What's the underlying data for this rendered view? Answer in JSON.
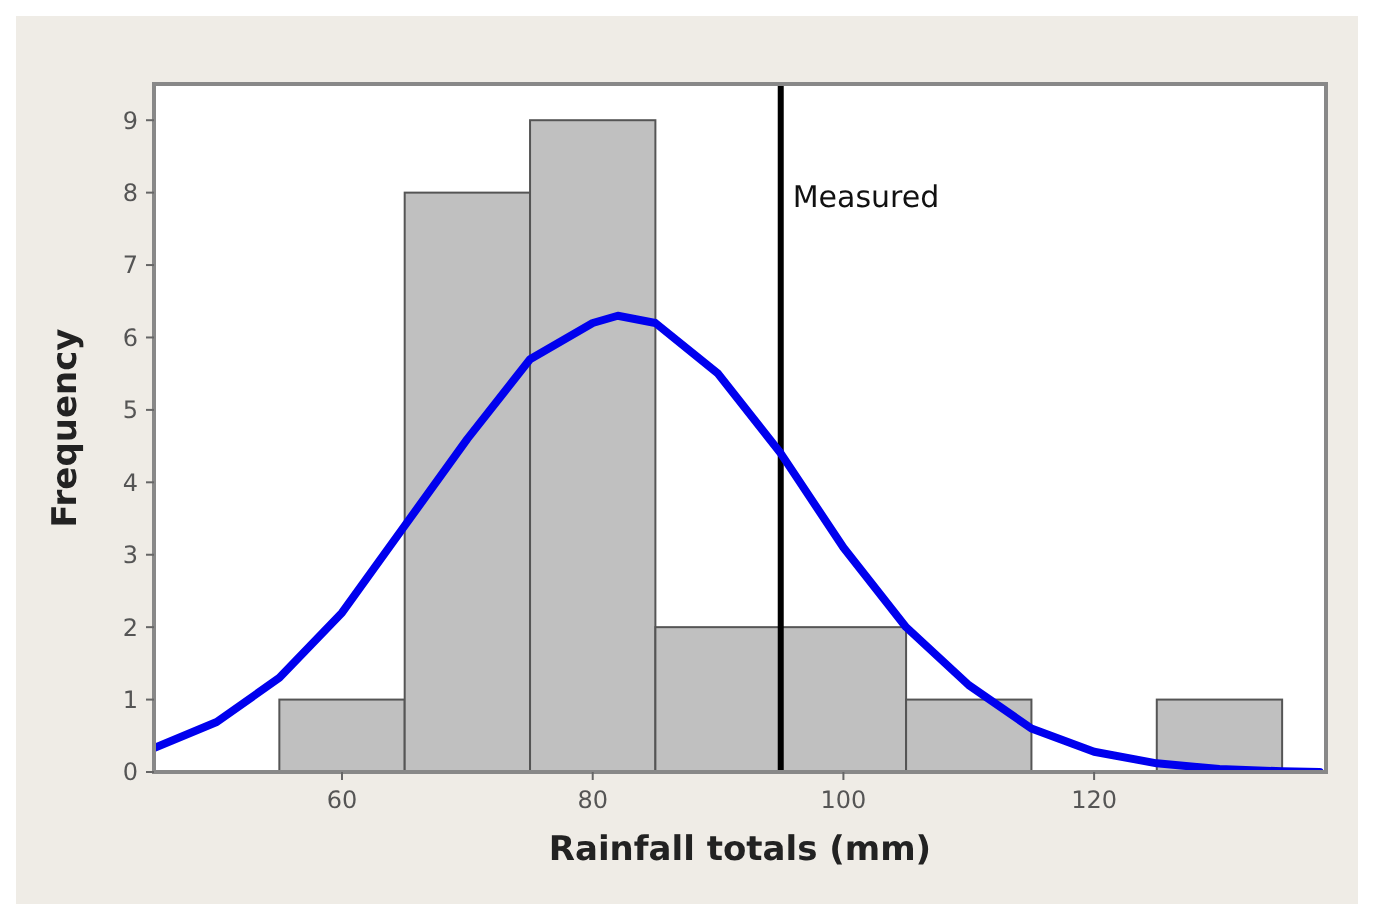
{
  "chart_data": {
    "type": "histogram",
    "xlabel": "Rainfall totals (mm)",
    "ylabel": "Frequency",
    "bins": [
      55,
      65,
      75,
      85,
      95,
      105,
      115,
      125,
      135
    ],
    "values": [
      1,
      8,
      9,
      2,
      2,
      1,
      0,
      1
    ],
    "color": "#c0c0c0",
    "series": [
      {
        "type": "line",
        "color": "#0000ee",
        "x": [
          45,
          50,
          55,
          60,
          65,
          70,
          75,
          80,
          82,
          85,
          90,
          95,
          100,
          105,
          110,
          115,
          120,
          125,
          130,
          135,
          138
        ],
        "values": [
          0.33,
          0.69,
          1.3,
          2.2,
          3.4,
          4.6,
          5.7,
          6.2,
          6.3,
          6.2,
          5.5,
          4.4,
          3.1,
          2.0,
          1.2,
          0.6,
          0.28,
          0.12,
          0.04,
          0.01,
          0
        ]
      }
    ],
    "xlim": [
      45,
      138.5
    ],
    "xticks": [
      60,
      80,
      100,
      120
    ],
    "ylim": [
      0,
      9.5
    ],
    "yticks": [
      0,
      1,
      2,
      3,
      4,
      5,
      6,
      7,
      8,
      9
    ],
    "ref_lines": [
      {
        "axis": "x",
        "value": 95,
        "label": "Measured",
        "color": "#000000"
      }
    ],
    "grid": false
  }
}
